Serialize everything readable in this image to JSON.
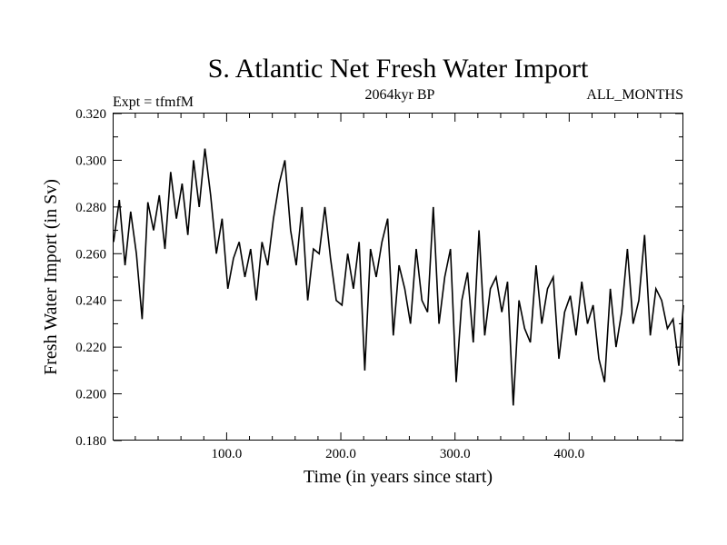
{
  "chart_data": {
    "type": "line",
    "title": "S. Atlantic Net Fresh Water Import",
    "subtitle_left": "Expt = tfmfM",
    "subtitle_center": "2064kyr BP",
    "subtitle_right": "ALL_MONTHS",
    "xlabel": "Time (in years since start)",
    "ylabel": "Fresh Water Import (in Sv)",
    "xlim": [
      1,
      500
    ],
    "ylim": [
      0.18,
      0.32
    ],
    "x_ticks": [
      100,
      200,
      300,
      400
    ],
    "x_tick_labels": [
      "100.0",
      "200.0",
      "300.0",
      "400.0"
    ],
    "y_ticks": [
      0.18,
      0.2,
      0.22,
      0.24,
      0.26,
      0.28,
      0.3,
      0.32
    ],
    "y_tick_labels": [
      "0.180",
      "0.200",
      "0.220",
      "0.240",
      "0.260",
      "0.280",
      "0.300",
      "0.320"
    ],
    "grid": false,
    "series": [
      {
        "name": "S. Atlantic Net Fresh Water Import",
        "color": "#000000",
        "x": [
          1,
          6,
          11,
          16,
          21,
          26,
          31,
          36,
          41,
          46,
          51,
          56,
          61,
          66,
          71,
          76,
          81,
          86,
          91,
          96,
          101,
          106,
          111,
          116,
          121,
          126,
          131,
          136,
          141,
          146,
          151,
          156,
          161,
          166,
          171,
          176,
          181,
          186,
          191,
          196,
          201,
          206,
          211,
          216,
          221,
          226,
          231,
          236,
          241,
          246,
          251,
          256,
          261,
          266,
          271,
          276,
          281,
          286,
          291,
          296,
          301,
          306,
          311,
          316,
          321,
          326,
          331,
          336,
          341,
          346,
          351,
          356,
          361,
          366,
          371,
          376,
          381,
          386,
          391,
          396,
          401,
          406,
          411,
          416,
          421,
          426,
          431,
          436,
          441,
          446,
          451,
          456,
          461,
          466,
          471,
          476,
          481,
          486,
          491,
          496,
          500
        ],
        "values": [
          0.265,
          0.283,
          0.255,
          0.278,
          0.26,
          0.232,
          0.282,
          0.27,
          0.285,
          0.262,
          0.295,
          0.275,
          0.29,
          0.268,
          0.3,
          0.28,
          0.305,
          0.285,
          0.26,
          0.275,
          0.245,
          0.258,
          0.265,
          0.25,
          0.262,
          0.24,
          0.265,
          0.255,
          0.275,
          0.29,
          0.3,
          0.27,
          0.255,
          0.28,
          0.24,
          0.262,
          0.26,
          0.28,
          0.258,
          0.24,
          0.238,
          0.26,
          0.245,
          0.265,
          0.21,
          0.262,
          0.25,
          0.265,
          0.275,
          0.225,
          0.255,
          0.245,
          0.23,
          0.262,
          0.24,
          0.235,
          0.28,
          0.23,
          0.25,
          0.262,
          0.205,
          0.24,
          0.252,
          0.222,
          0.27,
          0.225,
          0.245,
          0.25,
          0.235,
          0.248,
          0.195,
          0.24,
          0.228,
          0.222,
          0.255,
          0.23,
          0.245,
          0.25,
          0.215,
          0.235,
          0.242,
          0.225,
          0.248,
          0.23,
          0.238,
          0.215,
          0.205,
          0.245,
          0.22,
          0.235,
          0.262,
          0.23,
          0.24,
          0.268,
          0.225,
          0.245,
          0.24,
          0.228,
          0.232,
          0.212,
          0.238
        ]
      }
    ]
  }
}
